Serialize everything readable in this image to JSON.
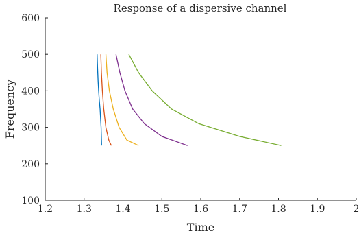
{
  "chart_data": {
    "type": "line",
    "title": "Response of a dispersive channel",
    "xlabel": "Time",
    "ylabel": "Frequency",
    "xlim": [
      1.2,
      2
    ],
    "ylim": [
      100,
      600
    ],
    "xticks": [
      "1.2",
      "1.3",
      "1.4",
      "1.5",
      "1.6",
      "1.7",
      "1.8",
      "1.9",
      "2"
    ],
    "yticks": [
      "100",
      "200",
      "300",
      "400",
      "500",
      "600"
    ],
    "grid": false,
    "legend": "none",
    "series": [
      {
        "color": "#0072BD",
        "x": [
          1.3335,
          1.3342,
          1.3351,
          1.3361,
          1.3374,
          1.339,
          1.3411,
          1.3437,
          1.345
        ],
        "y": [
          500,
          475,
          450,
          425,
          400,
          375,
          350,
          300,
          250
        ]
      },
      {
        "color": "#D95319",
        "x": [
          1.343,
          1.3445,
          1.347,
          1.3505,
          1.356,
          1.3635,
          1.37
        ],
        "y": [
          500,
          450,
          400,
          350,
          300,
          265,
          250
        ]
      },
      {
        "color": "#EDB120",
        "x": [
          1.356,
          1.359,
          1.365,
          1.375,
          1.39,
          1.41,
          1.44
        ],
        "y": [
          500,
          450,
          400,
          350,
          300,
          265,
          250
        ]
      },
      {
        "color": "#7E2F8E",
        "x": [
          1.382,
          1.392,
          1.405,
          1.425,
          1.455,
          1.5,
          1.566
        ],
        "y": [
          500,
          450,
          400,
          350,
          310,
          275,
          250
        ]
      },
      {
        "color": "#77AC30",
        "x": [
          1.415,
          1.44,
          1.475,
          1.525,
          1.595,
          1.7,
          1.807
        ],
        "y": [
          500,
          450,
          400,
          350,
          310,
          275,
          250
        ]
      }
    ]
  }
}
